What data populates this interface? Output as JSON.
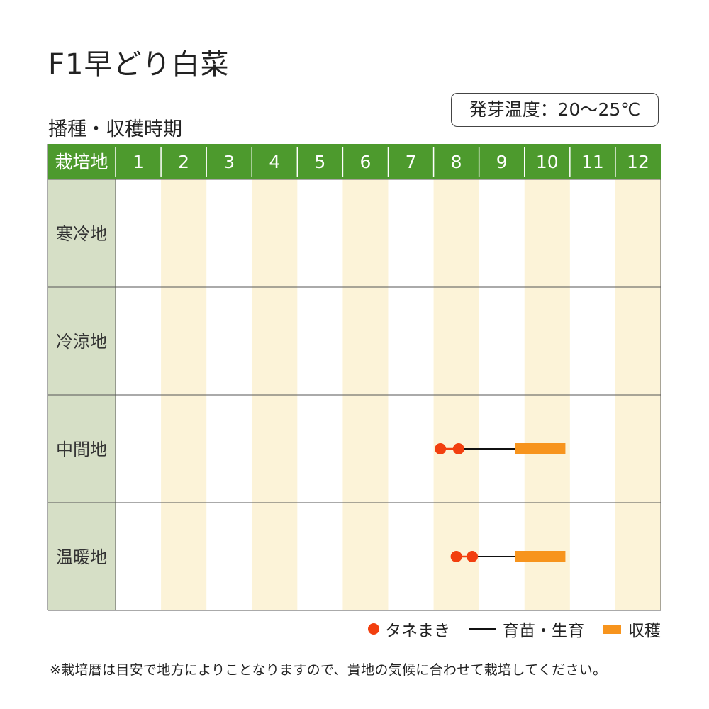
{
  "title": "F1早どり白菜",
  "subtitle": "播種・収穫時期",
  "temp_label": "発芽温度：20～25℃",
  "colors": {
    "header_green": "#4d9a2d",
    "region_col": "#d6dfc6",
    "stripe": "#fcf3d8",
    "sowing": "#f23f0f",
    "harvest": "#f7941d",
    "nursery": "#111111"
  },
  "chart_data": {
    "type": "table",
    "header_label": "栽培地",
    "months": [
      "1",
      "2",
      "3",
      "4",
      "5",
      "6",
      "7",
      "8",
      "9",
      "10",
      "11",
      "12"
    ],
    "rows": [
      {
        "region": "寒冷地",
        "sowing": [],
        "nursery": null,
        "harvest": null
      },
      {
        "region": "冷涼地",
        "sowing": [],
        "nursery": null,
        "harvest": null
      },
      {
        "region": "中間地",
        "sowing": [
          8.15,
          8.55
        ],
        "nursery": [
          8.55,
          9.8
        ],
        "harvest": [
          9.8,
          10.9
        ]
      },
      {
        "region": "温暖地",
        "sowing": [
          8.5,
          8.85
        ],
        "nursery": [
          8.85,
          9.8
        ],
        "harvest": [
          9.8,
          10.9
        ]
      }
    ]
  },
  "legend": {
    "sowing": "タネまき",
    "nursery": "育苗・生育",
    "harvest": "収穫"
  },
  "note": "※栽培暦は目安で地方によりことなりますので、貴地の気候に合わせて栽培してください。"
}
